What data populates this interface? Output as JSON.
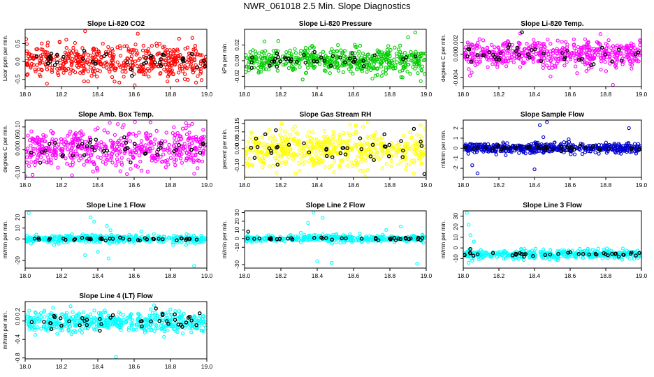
{
  "page_title": "NWR_061018  2.5 Min. Slope Diagnostics",
  "chart_data": [
    {
      "type": "scatter",
      "title": "Slope Li-820 CO2",
      "ylabel": "Licor ppm per min.",
      "xlim": [
        18.0,
        19.0
      ],
      "ylim": [
        -0.7,
        0.9
      ],
      "xticks": [
        "18.0",
        "18.2",
        "18.4",
        "18.6",
        "18.8",
        "19.0"
      ],
      "yticks": [
        "-0.5",
        "0.0",
        "0.5"
      ],
      "ytick_values": [
        -0.5,
        0.0,
        0.5
      ],
      "series": [
        {
          "color": "#ff0000",
          "center": 0.0,
          "spread": 0.23,
          "count": 500,
          "outliers": [
            [
              18.33,
              0.85
            ],
            [
              18.12,
              -0.62
            ],
            [
              18.62,
              0.78
            ]
          ]
        },
        {
          "color": "#000000",
          "center": 0.0,
          "spread": 0.14,
          "count": 40,
          "outliers": []
        }
      ]
    },
    {
      "type": "scatter",
      "title": "Slope Li-820 Pressure",
      "ylabel": "kPa per min.",
      "xlim": [
        18.0,
        19.0
      ],
      "ylim": [
        -0.033,
        0.04
      ],
      "xticks": [
        "18.0",
        "18.2",
        "18.4",
        "18.6",
        "18.8",
        "19.0"
      ],
      "yticks": [
        "-0.02",
        "0.00",
        "0.02"
      ],
      "ytick_values": [
        -0.02,
        0.0,
        0.02
      ],
      "series": [
        {
          "color": "#00cc00",
          "center": 0.0,
          "spread": 0.008,
          "count": 500,
          "outliers": [
            [
              18.94,
              0.036
            ],
            [
              18.9,
              0.03
            ],
            [
              18.32,
              -0.024
            ],
            [
              18.97,
              -0.026
            ]
          ]
        },
        {
          "color": "#000000",
          "center": 0.0,
          "spread": 0.005,
          "count": 40,
          "outliers": []
        }
      ]
    },
    {
      "type": "scatter",
      "title": "Slope Li-820 Temp.",
      "ylabel": "degrees C per min.",
      "xlim": [
        18.0,
        19.0
      ],
      "ylim": [
        -0.0055,
        0.0042
      ],
      "xticks": [
        "18.0",
        "18.2",
        "18.4",
        "18.6",
        "18.8",
        "19.0"
      ],
      "yticks": [
        "-0.004",
        "0.000",
        "0.002"
      ],
      "ytick_values": [
        -0.004,
        0.0,
        0.002
      ],
      "series": [
        {
          "color": "#ff00ff",
          "center": 0.0,
          "spread": 0.0011,
          "count": 500,
          "outliers": [
            [
              18.32,
              0.0035
            ],
            [
              18.84,
              -0.0052
            ],
            [
              18.49,
              -0.0038
            ],
            [
              18.77,
              0.0034
            ]
          ]
        },
        {
          "color": "#000000",
          "center": 0.0,
          "spread": 0.0008,
          "count": 40,
          "outliers": [
            [
              18.33,
              0.0037
            ]
          ]
        }
      ]
    },
    {
      "type": "scatter",
      "title": "Slope Amb. Box Temp.",
      "ylabel": "degrees C per min.",
      "xlim": [
        18.0,
        19.0
      ],
      "ylim": [
        -0.12,
        0.13
      ],
      "xticks": [
        "18.0",
        "18.2",
        "18.4",
        "18.6",
        "18.8",
        "19.0"
      ],
      "yticks": [
        "-0.10",
        "0.00",
        "0.05",
        "0.10"
      ],
      "ytick_values": [
        -0.1,
        0.0,
        0.05,
        0.1
      ],
      "series": [
        {
          "color": "#ff00ff",
          "center": 0.0,
          "spread": 0.045,
          "count": 520,
          "outliers": [
            [
              18.69,
              0.12
            ],
            [
              18.0,
              -0.115
            ]
          ]
        },
        {
          "color": "#000000",
          "center": 0.0,
          "spread": 0.03,
          "count": 40,
          "outliers": []
        }
      ]
    },
    {
      "type": "scatter",
      "title": "Slope Gas Stream RH",
      "ylabel": "percent per min.",
      "xlim": [
        18.0,
        19.0
      ],
      "ylim": [
        -0.17,
        0.17
      ],
      "xticks": [
        "18.0",
        "18.2",
        "18.4",
        "18.6",
        "18.8",
        "19.0"
      ],
      "yticks": [
        "-0.10",
        "0.00",
        "0.05",
        "0.10",
        "0.15"
      ],
      "ytick_values": [
        -0.1,
        0.0,
        0.05,
        0.1,
        0.15
      ],
      "series": [
        {
          "color": "#ffff00",
          "center": 0.0,
          "spread": 0.055,
          "count": 520,
          "outliers": [
            [
              18.0,
              -0.165
            ],
            [
              18.97,
              0.14
            ]
          ]
        },
        {
          "color": "#000000",
          "center": 0.0,
          "spread": 0.045,
          "count": 40,
          "outliers": [
            [
              18.99,
              -0.15
            ]
          ]
        }
      ]
    },
    {
      "type": "scatter",
      "title": "Slope Sample Flow",
      "ylabel": "ml/min per min.",
      "xlim": [
        18.0,
        19.0
      ],
      "ylim": [
        -2.9,
        2.8
      ],
      "xticks": [
        "18.0",
        "18.2",
        "18.4",
        "18.6",
        "18.8",
        "19.0"
      ],
      "yticks": [
        "-2",
        "-1",
        "0",
        "1",
        "2"
      ],
      "ytick_values": [
        -2,
        -1,
        0,
        1,
        2
      ],
      "series": [
        {
          "color": "#0000cc",
          "center": 0.0,
          "spread": 0.25,
          "count": 500,
          "outliers": [
            [
              18.43,
              2.3
            ],
            [
              18.47,
              2.6
            ],
            [
              18.08,
              -2.5
            ],
            [
              18.4,
              -2.1
            ],
            [
              18.05,
              -1.7
            ],
            [
              18.93,
              2.0
            ],
            [
              18.45,
              1.1
            ]
          ]
        },
        {
          "color": "#000000",
          "center": 0.0,
          "spread": 0.15,
          "count": 40,
          "outliers": []
        }
      ]
    },
    {
      "type": "scatter",
      "title": "Slope Line 1 Flow",
      "ylabel": "ml/min per min.",
      "xlim": [
        18.0,
        19.0
      ],
      "ylim": [
        -27,
        26
      ],
      "xticks": [
        "18.0",
        "18.2",
        "18.4",
        "18.6",
        "18.8",
        "19.0"
      ],
      "yticks": [
        "-20",
        "0",
        "10",
        "20"
      ],
      "ytick_values": [
        -20,
        0,
        10,
        20
      ],
      "series": [
        {
          "color": "#00ffff",
          "center": 0.0,
          "spread": 1.8,
          "count": 420,
          "outliers": [
            [
              18.02,
              24
            ],
            [
              18.36,
              20
            ],
            [
              18.38,
              16
            ],
            [
              18.45,
              12
            ],
            [
              18.4,
              -12
            ],
            [
              18.46,
              -18
            ],
            [
              18.33,
              -15
            ],
            [
              18.47,
              8
            ],
            [
              18.93,
              -25
            ]
          ]
        },
        {
          "color": "#000000",
          "center": 0.0,
          "spread": 0.6,
          "count": 40,
          "outliers": []
        }
      ]
    },
    {
      "type": "scatter",
      "title": "Slope Line 2 Flow",
      "ylabel": "ml/min per min.",
      "xlim": [
        18.0,
        19.0
      ],
      "ylim": [
        -34,
        32
      ],
      "xticks": [
        "18.0",
        "18.2",
        "18.4",
        "18.6",
        "18.8",
        "19.0"
      ],
      "yticks": [
        "-30",
        "-10",
        "0",
        "10",
        "20",
        "30"
      ],
      "ytick_values": [
        -30,
        -10,
        0,
        10,
        20,
        30
      ],
      "series": [
        {
          "color": "#00ffff",
          "center": 0.0,
          "spread": 2.0,
          "count": 420,
          "outliers": [
            [
              18.38,
              30
            ],
            [
              18.43,
              24
            ],
            [
              18.4,
              -26
            ],
            [
              18.48,
              -28
            ],
            [
              18.35,
              18
            ],
            [
              18.86,
              14
            ],
            [
              18.95,
              -29
            ],
            [
              18.78,
              10
            ]
          ]
        },
        {
          "color": "#000000",
          "center": 0.0,
          "spread": 0.8,
          "count": 40,
          "outliers": [
            [
              18.02,
              8
            ]
          ]
        }
      ]
    },
    {
      "type": "scatter",
      "title": "Slope Line 3 Flow",
      "ylabel": "ml/min per min.",
      "xlim": [
        18.0,
        19.0
      ],
      "ylim": [
        -19,
        35
      ],
      "xticks": [
        "18.0",
        "18.2",
        "18.4",
        "18.6",
        "18.8",
        "19.0"
      ],
      "yticks": [
        "-10",
        "0",
        "10",
        "20",
        "30"
      ],
      "ytick_values": [
        -10,
        0,
        10,
        20,
        30
      ],
      "series": [
        {
          "color": "#00ffff",
          "center": -6.0,
          "spread": 2.0,
          "count": 420,
          "outliers": [
            [
              18.02,
              33
            ],
            [
              18.03,
              22
            ],
            [
              18.04,
              12
            ],
            [
              18.03,
              -14
            ],
            [
              18.05,
              -12
            ],
            [
              18.06,
              6
            ]
          ]
        },
        {
          "color": "#000000",
          "center": -6.0,
          "spread": 1.0,
          "count": 40,
          "outliers": [
            [
              18.04,
              -1
            ]
          ]
        }
      ]
    },
    {
      "type": "scatter",
      "title": "Slope Line 4 (LT) Flow",
      "ylabel": "ml/min per min.",
      "xlim": [
        18.0,
        19.0
      ],
      "ylim": [
        -0.82,
        0.42
      ],
      "xticks": [
        "18.0",
        "18.2",
        "18.4",
        "18.6",
        "18.8",
        "19.0"
      ],
      "yticks": [
        "-0.8",
        "-0.4",
        "0.0",
        "0.2"
      ],
      "ytick_values": [
        -0.8,
        -0.4,
        0.0,
        0.2
      ],
      "series": [
        {
          "color": "#00ffff",
          "center": -0.02,
          "spread": 0.11,
          "count": 520,
          "outliers": [
            [
              18.5,
              -0.78
            ],
            [
              18.25,
              0.32
            ],
            [
              18.71,
              0.34
            ]
          ]
        },
        {
          "color": "#000000",
          "center": 0.0,
          "spread": 0.08,
          "count": 40,
          "outliers": [
            [
              18.72,
              0.27
            ]
          ]
        }
      ]
    }
  ]
}
